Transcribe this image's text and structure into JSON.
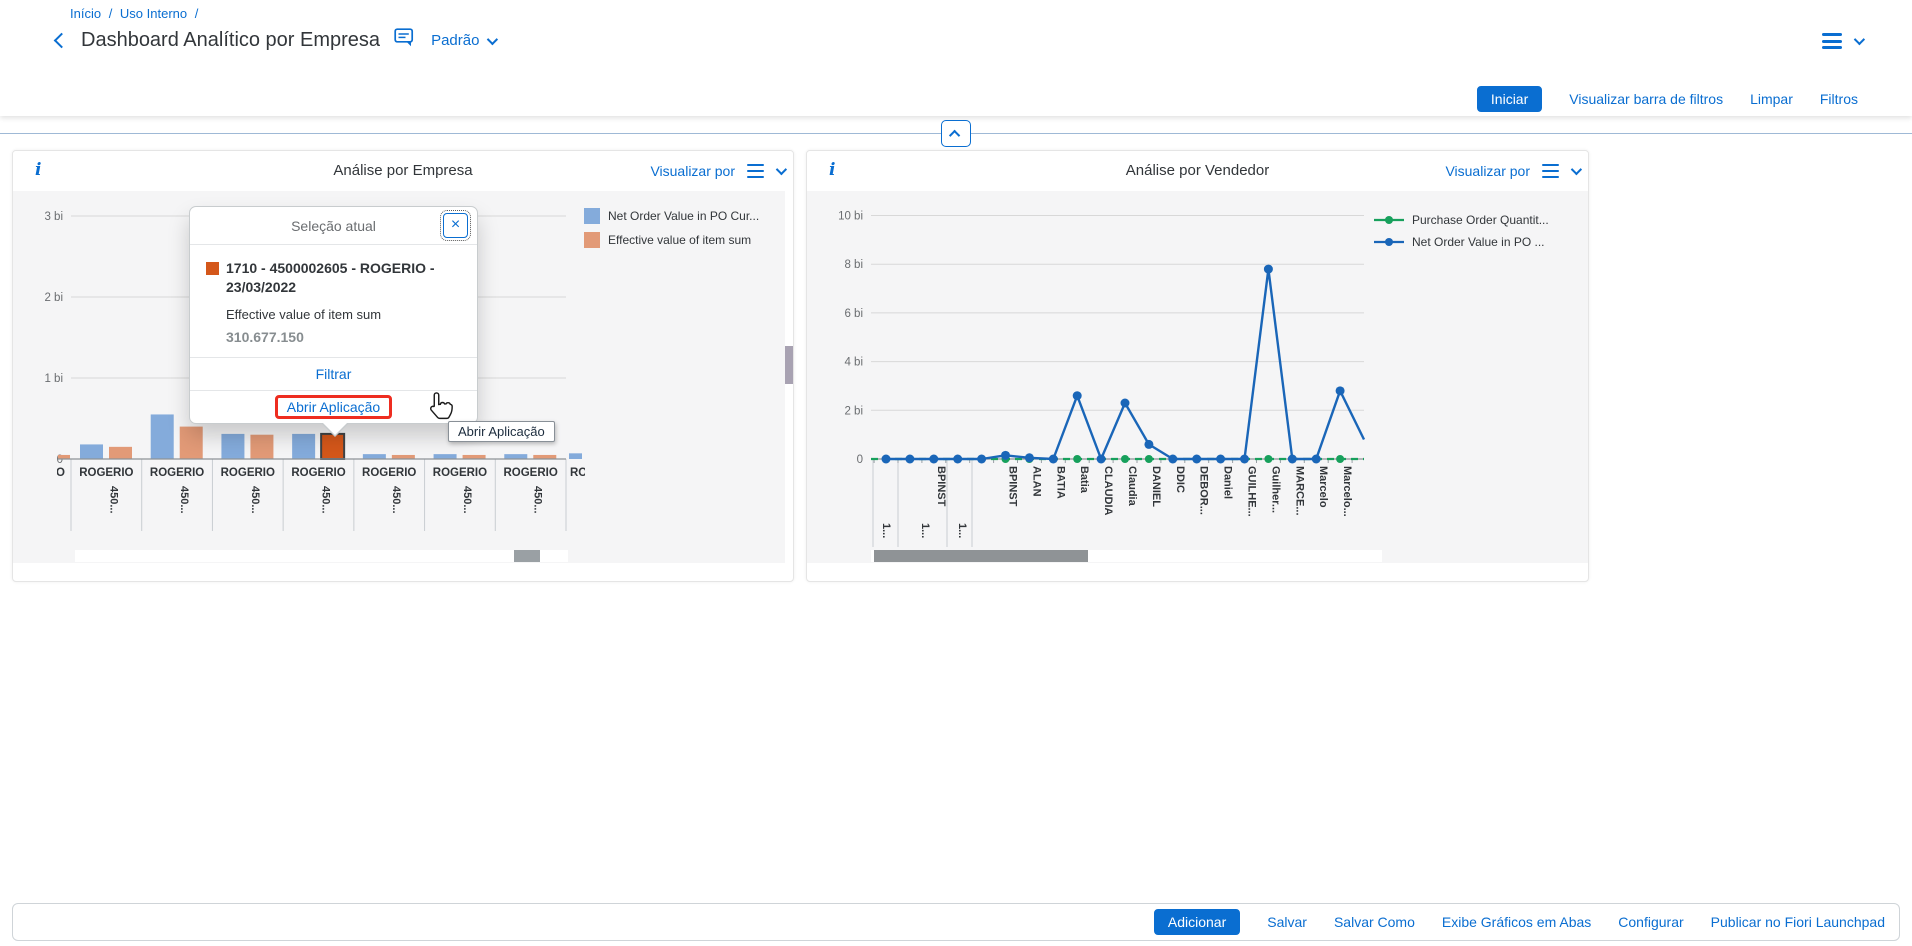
{
  "colors": {
    "accent": "#0a6ed1",
    "bar_blue": "#84abdb",
    "bar_orange": "#e29a77",
    "selected_orange": "#d4571a",
    "line_green": "#17a05c",
    "line_blue": "#1a66b8",
    "highlight_red": "#ee2d20"
  },
  "header": {
    "breadcrumb": [
      "Início",
      "Uso Interno"
    ],
    "breadcrumb_separator": "/",
    "title": "Dashboard Analítico por Empresa",
    "variant": "Padrão"
  },
  "filter_toolbar": {
    "iniciar": "Iniciar",
    "visualizar_barra": "Visualizar barra de filtros",
    "limpar": "Limpar",
    "filtros": "Filtros"
  },
  "cards": {
    "empresa": {
      "title": "Análise por Empresa",
      "view_by": "Visualizar por"
    },
    "vendedor": {
      "title": "Análise por Vendedor",
      "view_by": "Visualizar por"
    }
  },
  "popup": {
    "title": "Seleção atual",
    "item_title": "1710 - 4500002605 - ROGERIO - 23/03/2022",
    "measure": "Effective value of item sum",
    "value": "310.677.150",
    "filter_label": "Filtrar",
    "open_app_label": "Abrir Aplicação"
  },
  "tooltip": {
    "text": "Abrir Aplicação"
  },
  "footer": {
    "buttons": [
      {
        "label": "Adicionar",
        "primary": true
      },
      {
        "label": "Salvar"
      },
      {
        "label": "Salvar Como"
      },
      {
        "label": "Exibe Gráficos em Abas"
      },
      {
        "label": "Configurar"
      },
      {
        "label": "Publicar no Fiori Launchpad"
      }
    ]
  },
  "chart_data": [
    {
      "type": "bar",
      "card": "empresa",
      "title": "Análise por Empresa",
      "unit": "bi",
      "ylim": [
        0,
        3.3
      ],
      "yticks": [
        {
          "value": 3,
          "label": "3 bi"
        },
        {
          "value": 2,
          "label": "2 bi"
        },
        {
          "value": 1,
          "label": "1 bi"
        },
        {
          "value": 0,
          "label": "0"
        }
      ],
      "series": [
        {
          "name": "Net Order Value in PO Cur...",
          "color": "#84abdb"
        },
        {
          "name": "Effective value of item sum",
          "color": "#e29a77"
        }
      ],
      "categories": [
        {
          "label": "ROGERIO",
          "sub": "450...",
          "values": [
            0.18,
            0.15
          ]
        },
        {
          "label": "ROGERIO",
          "sub": "450...",
          "values": [
            0.55,
            0.4
          ]
        },
        {
          "label": "ROGERIO",
          "sub": "450...",
          "values": [
            0.31,
            0.3
          ]
        },
        {
          "label": "ROGERIO",
          "sub": "450...",
          "values": [
            0.31,
            0.31
          ]
        },
        {
          "label": "ROGERIO",
          "sub": "450...",
          "values": [
            0.06,
            0.05
          ]
        },
        {
          "label": "ROGERIO",
          "sub": "450...",
          "values": [
            0.06,
            0.05
          ]
        },
        {
          "label": "ROGERIO",
          "sub": "450...",
          "values": [
            0.06,
            0.05
          ]
        }
      ],
      "selected": {
        "category_index": 3,
        "series_index": 1,
        "color": "#d4571a",
        "value_label": "310.677.150"
      },
      "partial_left_bar": {
        "series_index": 1,
        "value": 0.05
      },
      "partial_right_bar": {
        "series_index": 0,
        "value": 0.07,
        "label": "ROGERIO"
      }
    },
    {
      "type": "line",
      "card": "vendedor",
      "title": "Análise por Vendedor",
      "unit": "bi",
      "ylim": [
        0,
        10.5
      ],
      "yticks": [
        {
          "value": 10,
          "label": "10 bi"
        },
        {
          "value": 8,
          "label": "8 bi"
        },
        {
          "value": 6,
          "label": "6 bi"
        },
        {
          "value": 4,
          "label": "4 bi"
        },
        {
          "value": 2,
          "label": "2 bi"
        },
        {
          "value": 0,
          "label": "0"
        }
      ],
      "categories": [
        "",
        "",
        "BPINST",
        "",
        "",
        "BPINST",
        "ALAN",
        "BATIA",
        "Batia",
        "CLAUDIA",
        "Claudia",
        "DANIEL",
        "DDIC",
        "DEBOR...",
        "Daniel",
        "GUILHE...",
        "Guilher...",
        "MARCE...",
        "Marcelo",
        "Marcelo..."
      ],
      "group_labels": [
        "1...",
        "1...",
        "1..."
      ],
      "series": [
        {
          "name": "Purchase Order Quantit...",
          "color": "#17a05c",
          "style": "dashed",
          "values": [
            0,
            0,
            0,
            0,
            0,
            0,
            0,
            0,
            0,
            0,
            0,
            0,
            0,
            0,
            0,
            0,
            0,
            0,
            0,
            0
          ]
        },
        {
          "name": "Net Order Value in PO ...",
          "color": "#1a66b8",
          "style": "solid",
          "values": [
            0,
            0,
            0,
            0,
            0,
            0.15,
            0.05,
            0,
            2.6,
            0,
            2.3,
            0.6,
            0,
            0,
            0,
            0,
            7.8,
            0,
            0,
            2.8
          ],
          "trail_value": 0.8
        }
      ]
    }
  ]
}
